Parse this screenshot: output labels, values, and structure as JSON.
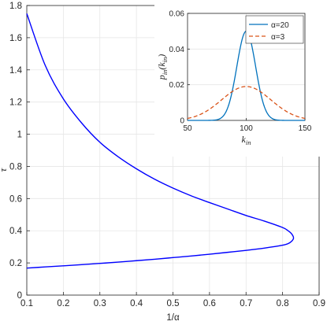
{
  "colors": {
    "main_curve": "#0000ff",
    "inset_alpha20": "#0072bd",
    "inset_alpha3": "#d95319",
    "grid": "#e6e6e6",
    "axis": "#262626"
  },
  "chart_data": [
    {
      "type": "line",
      "xlabel": "1/α",
      "ylabel": "τ",
      "xlim": [
        0.1,
        0.9
      ],
      "ylim": [
        0,
        1.8
      ],
      "xticks": [
        "0.1",
        "0.2",
        "0.3",
        "0.4",
        "0.5",
        "0.6",
        "0.7",
        "0.8",
        "0.9"
      ],
      "yticks": [
        "0",
        "0.2",
        "0.4",
        "0.6",
        "0.8",
        "1",
        "1.2",
        "1.4",
        "1.6",
        "1.8"
      ],
      "grid": true,
      "series": [
        {
          "x": [
            0.1,
            0.15,
            0.2,
            0.25,
            0.3,
            0.35,
            0.4,
            0.45,
            0.5,
            0.55,
            0.6,
            0.65,
            0.7,
            0.75,
            0.8,
            0.815,
            0.825,
            0.83,
            0.825,
            0.815,
            0.8,
            0.75,
            0.7,
            0.65,
            0.6,
            0.55,
            0.5,
            0.45,
            0.4,
            0.35,
            0.3,
            0.25,
            0.2,
            0.15,
            0.1
          ],
          "y": [
            1.75,
            1.43,
            1.22,
            1.07,
            0.95,
            0.86,
            0.785,
            0.72,
            0.665,
            0.617,
            0.575,
            0.535,
            0.495,
            0.46,
            0.42,
            0.4,
            0.38,
            0.355,
            0.335,
            0.32,
            0.31,
            0.292,
            0.278,
            0.266,
            0.254,
            0.243,
            0.233,
            0.223,
            0.214,
            0.205,
            0.197,
            0.189,
            0.182,
            0.175,
            0.168
          ]
        }
      ]
    },
    {
      "type": "line",
      "xlabel": "k_in",
      "ylabel": "p_in(k_in)",
      "xlim": [
        50,
        150
      ],
      "ylim": [
        0,
        0.06
      ],
      "xticks": [
        "50",
        "100",
        "150"
      ],
      "yticks": [
        "0",
        "0.02",
        "0.04",
        "0.06"
      ],
      "grid": true,
      "legend": "top-right",
      "series": [
        {
          "name": "α=20",
          "style": "solid",
          "mean": 100,
          "peak": 0.05
        },
        {
          "name": "α=3",
          "style": "dashed",
          "mean": 100,
          "peak": 0.019
        }
      ]
    }
  ]
}
